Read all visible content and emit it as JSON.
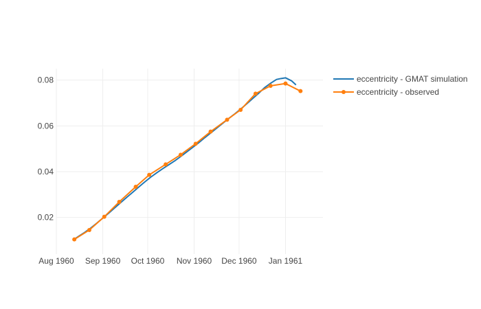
{
  "chart_data": {
    "type": "line",
    "title": "",
    "xlabel": "",
    "ylabel": "",
    "x_axis": {
      "type": "date",
      "range": [
        "1960-08-01",
        "1961-01-26"
      ],
      "ticks": [
        {
          "date": "1960-08-01",
          "label": "Aug 1960"
        },
        {
          "date": "1960-09-01",
          "label": "Sep 1960"
        },
        {
          "date": "1960-10-01",
          "label": "Oct 1960"
        },
        {
          "date": "1960-11-01",
          "label": "Nov 1960"
        },
        {
          "date": "1960-12-01",
          "label": "Dec 1960"
        },
        {
          "date": "1961-01-01",
          "label": "Jan 1961"
        }
      ]
    },
    "y_axis": {
      "range": [
        0.004,
        0.085
      ],
      "ticks": [
        {
          "value": 0.02,
          "label": "0.02"
        },
        {
          "value": 0.04,
          "label": "0.04"
        },
        {
          "value": 0.06,
          "label": "0.06"
        },
        {
          "value": 0.08,
          "label": "0.08"
        }
      ]
    },
    "grid": true,
    "legend_position": "top-right",
    "series": [
      {
        "name": "eccentricity - GMAT simulation",
        "color": "#1f77b4",
        "markers": false,
        "x": [
          "1960-08-13",
          "1960-08-16",
          "1960-08-20",
          "1960-08-24",
          "1960-08-28",
          "1960-09-01",
          "1960-09-05",
          "1960-09-09",
          "1960-09-13",
          "1960-09-17",
          "1960-09-21",
          "1960-09-25",
          "1960-09-29",
          "1960-10-03",
          "1960-10-07",
          "1960-10-11",
          "1960-10-15",
          "1960-10-19",
          "1960-10-23",
          "1960-10-27",
          "1960-10-31",
          "1960-11-04",
          "1960-11-08",
          "1960-11-12",
          "1960-11-16",
          "1960-11-20",
          "1960-11-24",
          "1960-11-28",
          "1960-12-02",
          "1960-12-06",
          "1960-12-10",
          "1960-12-14",
          "1960-12-18",
          "1960-12-22",
          "1960-12-26",
          "1960-12-29",
          "1961-01-01",
          "1961-01-05",
          "1961-01-08"
        ],
        "y": [
          0.0105,
          0.0118,
          0.0135,
          0.0154,
          0.0175,
          0.0197,
          0.0219,
          0.0242,
          0.0265,
          0.0288,
          0.031,
          0.0333,
          0.0355,
          0.0376,
          0.0395,
          0.0413,
          0.043,
          0.0447,
          0.0466,
          0.0486,
          0.0506,
          0.0526,
          0.0548,
          0.0569,
          0.059,
          0.0611,
          0.0632,
          0.0652,
          0.0673,
          0.0696,
          0.0719,
          0.0742,
          0.0767,
          0.0786,
          0.0803,
          0.0807,
          0.081,
          0.0797,
          0.0779
        ]
      },
      {
        "name": "eccentricity - observed",
        "color": "#ff7f0e",
        "markers": true,
        "x": [
          "1960-08-13",
          "1960-08-23",
          "1960-09-02",
          "1960-09-12",
          "1960-09-23",
          "1960-10-02",
          "1960-10-13",
          "1960-10-23",
          "1960-11-02",
          "1960-11-12",
          "1960-11-23",
          "1960-12-02",
          "1960-12-12",
          "1960-12-22",
          "1961-01-01",
          "1961-01-11"
        ],
        "y": [
          0.0104,
          0.0145,
          0.0203,
          0.0268,
          0.0334,
          0.0386,
          0.0432,
          0.0474,
          0.0522,
          0.0575,
          0.0627,
          0.067,
          0.0741,
          0.0775,
          0.0785,
          0.0752
        ]
      }
    ]
  }
}
